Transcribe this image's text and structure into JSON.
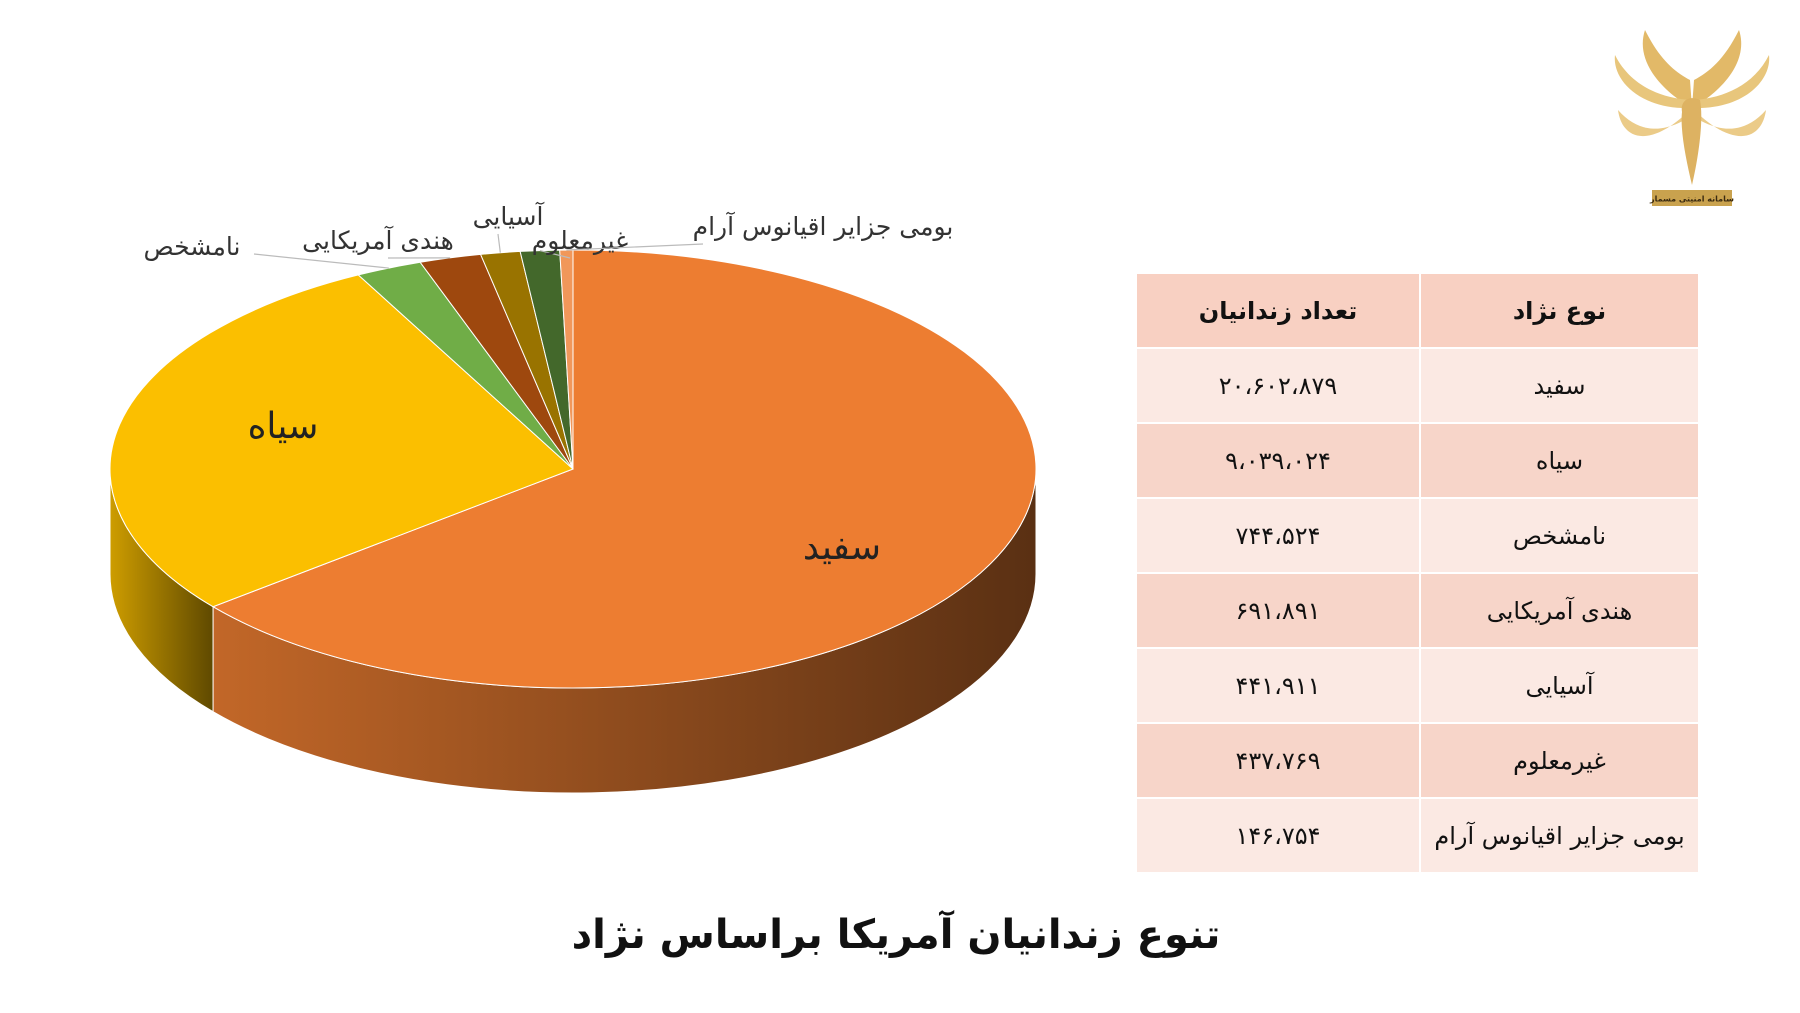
{
  "chart_data": {
    "type": "pie3d",
    "title": "تنوع زندانیان آمریکا براساس نژاد",
    "categories": [
      "سفید",
      "سیاه",
      "نامشخص",
      "هندی آمریکایی",
      "آسیایی",
      "غیرمعلوم",
      "بومی جزایر اقیانوس آرام"
    ],
    "values": [
      20602879,
      9039024,
      744524,
      691891,
      441911,
      437769,
      146754
    ],
    "value_labels": [
      "۲۰،۶۰۲،۸۷۹",
      "۹،۰۳۹،۰۲۴",
      "۷۴۴،۵۲۴",
      "۶۹۱،۸۹۱",
      "۴۴۱،۹۱۱",
      "۴۳۷،۷۶۹",
      "۱۴۶،۷۵۴"
    ],
    "colors": [
      "#ED7D31",
      "#FBBF00",
      "#70AD47",
      "#9E480E",
      "#997300",
      "#43682B",
      "#F1975A"
    ]
  },
  "table": {
    "headers": [
      "نوع نژاد",
      "تعداد زندانیان"
    ]
  },
  "logo": {
    "text": "سامانه امنیتی مسمار"
  }
}
